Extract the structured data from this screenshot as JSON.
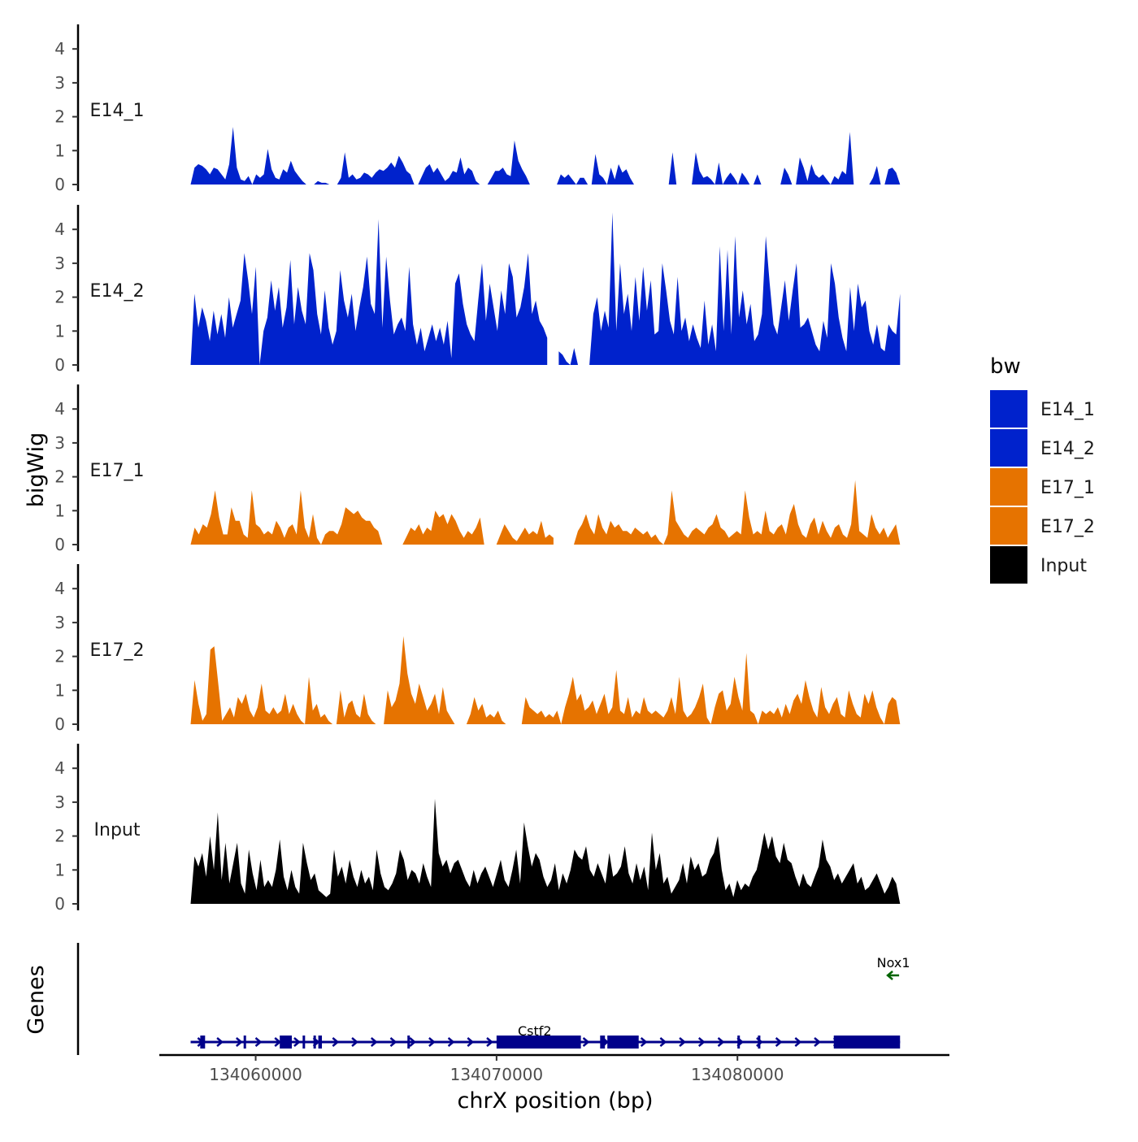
{
  "chart_data": {
    "type": "area",
    "title": "",
    "ylabel": "bigWig",
    "xlabel": "chrX position (bp)",
    "gene_track_label": "Genes",
    "chrom": "chrX",
    "xlim": [
      134056000,
      134088800
    ],
    "ylim": [
      0,
      4.5
    ],
    "y_ticks": [
      "0",
      "1",
      "2",
      "3",
      "4"
    ],
    "y_tick_values": [
      0,
      1,
      2,
      3,
      4
    ],
    "x_ticks": [
      {
        "value": 134060000,
        "label": "134060000"
      },
      {
        "value": 134070000,
        "label": "134070000"
      },
      {
        "value": 134080000,
        "label": "134080000"
      }
    ],
    "data_range": [
      134057300,
      134086750
    ],
    "tracks": [
      {
        "name": "E14_1",
        "color": "#0022cc",
        "values": [
          0,
          0.5,
          0.6,
          0.55,
          0.45,
          0.3,
          0.5,
          0.45,
          0.3,
          0.15,
          0.6,
          1.7,
          0.5,
          0.15,
          0.1,
          0.25,
          0,
          0.3,
          0.2,
          0.3,
          1.05,
          0.45,
          0.2,
          0.15,
          0.45,
          0.35,
          0.7,
          0.4,
          0.25,
          0.1,
          0,
          0,
          0,
          0.1,
          0.05,
          0.05,
          0,
          0,
          0,
          0.2,
          0.95,
          0.2,
          0.3,
          0.15,
          0.2,
          0.35,
          0.3,
          0.2,
          0.35,
          0.45,
          0.4,
          0.5,
          0.65,
          0.5,
          0.85,
          0.65,
          0.4,
          0.3,
          0,
          0,
          0.25,
          0.5,
          0.6,
          0.35,
          0.5,
          0.3,
          0.1,
          0.2,
          0.4,
          0.35,
          0.8,
          0.3,
          0.5,
          0.4,
          0.1,
          0,
          0,
          0,
          0.2,
          0.4,
          0.4,
          0.5,
          0.3,
          0.25,
          1.3,
          0.7,
          0.45,
          0.25,
          0,
          0,
          0,
          0,
          0,
          0.25,
          0,
          0,
          0.3,
          0.2,
          0.3,
          0.15,
          0,
          0.2,
          0.2,
          0,
          0,
          0.9,
          0.3,
          0.2,
          0,
          0.5,
          0.15,
          0.6,
          0.35,
          0.45,
          0.2,
          0,
          0,
          0,
          0,
          0,
          0,
          0,
          0,
          0,
          0,
          0.95,
          0,
          0,
          0,
          0,
          0,
          0.95,
          0.4,
          0.2,
          0.25,
          0.15,
          0,
          0.65,
          0,
          0.2,
          0.35,
          0.2,
          0,
          0.35,
          0.2,
          0,
          0,
          0.3,
          0,
          0,
          0,
          0,
          0,
          0,
          0.5,
          0.3,
          0,
          0,
          0.8,
          0.5,
          0.1,
          0.6,
          0.3,
          0.2,
          0.3,
          0.15,
          0,
          0.25,
          0.15,
          0.4,
          0.3,
          1.55,
          0,
          0,
          0,
          0,
          0,
          0.2,
          0.55,
          0,
          0,
          0.45,
          0.5,
          0.35,
          0
        ],
        "gaps": [
          [
            134072100,
            134072500
          ]
        ]
      },
      {
        "name": "E14_2",
        "color": "#0022cc",
        "values": [
          0,
          2.1,
          1.1,
          1.7,
          1.3,
          0.7,
          1.6,
          0.9,
          1.5,
          0.8,
          2.0,
          1.1,
          1.5,
          1.9,
          3.3,
          2.5,
          1.5,
          2.9,
          0,
          1.0,
          1.4,
          2.5,
          1.6,
          2.3,
          1.1,
          1.7,
          3.1,
          1.2,
          2.3,
          1.6,
          1.2,
          3.3,
          2.8,
          1.5,
          0.9,
          2.2,
          1.1,
          0.6,
          1.0,
          2.8,
          1.9,
          1.4,
          2.1,
          1.0,
          1.7,
          2.3,
          3.2,
          1.8,
          1.5,
          4.3,
          1.1,
          3.2,
          1.9,
          0.9,
          1.2,
          1.4,
          1.0,
          2.9,
          1.2,
          0.6,
          1.1,
          0.4,
          0.8,
          1.2,
          0.7,
          1.1,
          0.6,
          1.3,
          0.2,
          2.4,
          2.7,
          1.8,
          1.2,
          0.9,
          0.7,
          1.9,
          3.0,
          1.3,
          2.4,
          1.7,
          1.0,
          2.2,
          1.5,
          3.0,
          2.6,
          1.4,
          1.7,
          2.3,
          3.3,
          1.5,
          1.9,
          1.3,
          1.1,
          0.8,
          0.6,
          0.5,
          0.4,
          0.3,
          0.1,
          0,
          0.5,
          0,
          0,
          0,
          0,
          1.5,
          2.0,
          1.0,
          1.6,
          1.1,
          4.5,
          1.0,
          3.0,
          1.5,
          2.1,
          1.0,
          2.6,
          1.3,
          2.9,
          1.6,
          2.5,
          0.9,
          1.0,
          3.0,
          2.2,
          1.3,
          0.9,
          2.6,
          1.0,
          1.4,
          0.7,
          1.2,
          0.8,
          0.5,
          1.9,
          0.6,
          1.2,
          0.4,
          3.5,
          1.0,
          3.4,
          0.9,
          3.8,
          1.4,
          2.2,
          1.2,
          1.8,
          0.7,
          0.9,
          1.5,
          3.8,
          2.4,
          1.2,
          0.9,
          1.7,
          2.5,
          1.3,
          2.2,
          3.0,
          1.1,
          1.2,
          1.4,
          1.0,
          0.6,
          0.4,
          1.3,
          0.8,
          3.0,
          2.4,
          1.4,
          0.8,
          0.4,
          2.3,
          1.0,
          2.4,
          1.7,
          1.9,
          1.0,
          0.6,
          1.2,
          0.5,
          0.4,
          1.2,
          1.0,
          0.9,
          2.1
        ],
        "gaps": [
          [
            134072200,
            134072450
          ]
        ]
      },
      {
        "name": "E17_1",
        "color": "#e67300",
        "values": [
          0,
          0.5,
          0.3,
          0.6,
          0.5,
          0.9,
          1.6,
          0.8,
          0.3,
          0.3,
          1.1,
          0.7,
          0.7,
          0.3,
          0.2,
          1.6,
          0.6,
          0.5,
          0.3,
          0.4,
          0.3,
          0.7,
          0.5,
          0.2,
          0.5,
          0.6,
          0.3,
          1.6,
          0.5,
          0.2,
          0.9,
          0.2,
          0,
          0.3,
          0.4,
          0.4,
          0.3,
          0.6,
          1.1,
          1.0,
          0.9,
          1.0,
          0.8,
          0.7,
          0.7,
          0.5,
          0.4,
          0,
          0,
          0,
          0,
          0,
          0,
          0.25,
          0.5,
          0.4,
          0.6,
          0.3,
          0.5,
          0.4,
          1.0,
          0.8,
          0.9,
          0.6,
          0.9,
          0.7,
          0.4,
          0.2,
          0.4,
          0.3,
          0.5,
          0.8,
          0,
          0,
          0,
          0,
          0.3,
          0.6,
          0.4,
          0.2,
          0.1,
          0.3,
          0.5,
          0.3,
          0.4,
          0.3,
          0.7,
          0.2,
          0.3,
          0.2,
          0.1,
          0,
          0,
          0,
          0,
          0.4,
          0.6,
          0.9,
          0.5,
          0.3,
          0.9,
          0.5,
          0.3,
          0.7,
          0.5,
          0.6,
          0.4,
          0.4,
          0.3,
          0.5,
          0.4,
          0.3,
          0.4,
          0.2,
          0.3,
          0.1,
          0,
          0.3,
          1.6,
          0.7,
          0.5,
          0.3,
          0.2,
          0.4,
          0.5,
          0.4,
          0.3,
          0.5,
          0.6,
          0.9,
          0.5,
          0.4,
          0.2,
          0.3,
          0.4,
          0.3,
          1.6,
          0.8,
          0.3,
          0.4,
          0.3,
          1.0,
          0.4,
          0.3,
          0.5,
          0.6,
          0.3,
          0.9,
          1.2,
          0.6,
          0.3,
          0.2,
          0.6,
          0.8,
          0.3,
          0.7,
          0.4,
          0.2,
          0.5,
          0.6,
          0.3,
          0.2,
          0.6,
          1.9,
          0.4,
          0.3,
          0.2,
          0.9,
          0.5,
          0.3,
          0.5,
          0.2,
          0.4,
          0.6,
          0
        ],
        "gaps": [
          [
            134072400,
            134072600
          ]
        ]
      },
      {
        "name": "E17_2",
        "color": "#e67300",
        "values": [
          0,
          1.3,
          0.6,
          0.1,
          0.3,
          2.2,
          2.3,
          1.2,
          0.1,
          0.3,
          0.5,
          0.2,
          0.8,
          0.6,
          0.9,
          0.4,
          0.2,
          0.5,
          1.2,
          0.4,
          0.3,
          0.5,
          0.3,
          0.4,
          0.9,
          0.3,
          0.6,
          0.3,
          0.1,
          0,
          1.4,
          0.4,
          0.6,
          0.2,
          0.3,
          0.1,
          0,
          0,
          1.0,
          0.2,
          0.6,
          0.7,
          0.3,
          0.2,
          0.9,
          0.3,
          0.1,
          0,
          0,
          0,
          1.0,
          0.5,
          0.7,
          1.2,
          2.6,
          1.5,
          0.9,
          0.6,
          1.2,
          0.8,
          0.4,
          0.6,
          0.9,
          0.3,
          1.1,
          0.4,
          0.2,
          0,
          0,
          0,
          0,
          0.3,
          0.8,
          0.4,
          0.6,
          0.2,
          0.3,
          0.2,
          0.4,
          0.1,
          0,
          0,
          0,
          0,
          0,
          0.8,
          0.5,
          0.4,
          0.3,
          0.4,
          0.2,
          0.3,
          0.2,
          0.4,
          0,
          0.5,
          0.9,
          1.4,
          0.7,
          0.9,
          0.4,
          0.5,
          0.7,
          0.3,
          0.6,
          0.9,
          0.3,
          0.5,
          1.6,
          0.4,
          0.3,
          0.8,
          0.2,
          0.4,
          0.3,
          0.8,
          0.4,
          0.3,
          0.4,
          0.3,
          0.2,
          0.4,
          0.8,
          0.3,
          1.4,
          0.4,
          0.2,
          0.3,
          0.5,
          0.8,
          1.2,
          0.2,
          0,
          0.5,
          0.9,
          1.0,
          0.4,
          0.6,
          1.4,
          0.8,
          0.4,
          2.1,
          0.4,
          0.3,
          0,
          0.4,
          0.3,
          0.4,
          0.3,
          0.5,
          0.2,
          0.6,
          0.3,
          0.7,
          0.9,
          0.6,
          1.3,
          0.8,
          0.4,
          0.2,
          1.1,
          0.5,
          0.3,
          0.6,
          0.8,
          0.3,
          0.2,
          1.0,
          0.6,
          0.3,
          0.2,
          0.9,
          0.6,
          1.0,
          0.5,
          0.2,
          0,
          0.6,
          0.8,
          0.7,
          0
        ],
        "gaps": []
      },
      {
        "name": "Input",
        "color": "#000000",
        "values": [
          0,
          1.4,
          1.1,
          1.5,
          0.8,
          2.0,
          1.0,
          2.7,
          0.7,
          1.8,
          0.6,
          1.2,
          1.8,
          0.6,
          0.3,
          1.6,
          0.9,
          0.4,
          1.3,
          0.5,
          0.7,
          0.5,
          1.0,
          1.9,
          0.8,
          0.4,
          1.0,
          0.5,
          0.3,
          1.8,
          1.2,
          0.7,
          0.9,
          0.4,
          0.3,
          0.2,
          0.3,
          1.6,
          0.8,
          1.1,
          0.6,
          1.3,
          0.8,
          0.5,
          1.0,
          0.6,
          0.8,
          0.4,
          1.6,
          0.9,
          0.5,
          0.4,
          0.6,
          0.9,
          1.6,
          1.3,
          0.7,
          1.0,
          0.9,
          0.6,
          1.2,
          0.8,
          0.5,
          3.1,
          1.5,
          1.1,
          1.3,
          0.9,
          1.2,
          1.3,
          1.0,
          0.7,
          0.5,
          1.0,
          0.6,
          0.9,
          1.1,
          0.8,
          0.5,
          0.9,
          1.3,
          0.7,
          0.5,
          1.0,
          1.6,
          0.6,
          2.4,
          1.7,
          1.1,
          1.5,
          1.3,
          0.8,
          0.5,
          0.7,
          1.2,
          0.4,
          0.9,
          0.6,
          1.0,
          1.6,
          1.4,
          1.3,
          1.7,
          1.0,
          0.8,
          1.2,
          0.9,
          0.6,
          1.5,
          0.8,
          0.9,
          1.1,
          1.7,
          0.9,
          0.6,
          1.2,
          0.7,
          1.1,
          0.4,
          2.1,
          1.0,
          1.5,
          0.6,
          0.8,
          0.3,
          0.5,
          0.7,
          1.2,
          0.6,
          1.4,
          1.0,
          1.2,
          0.8,
          0.9,
          1.3,
          1.5,
          2.0,
          1.0,
          0.4,
          0.6,
          0.2,
          0.7,
          0.4,
          0.6,
          0.5,
          0.8,
          1.0,
          1.5,
          2.1,
          1.6,
          2.0,
          1.4,
          1.2,
          1.8,
          1.3,
          1.2,
          0.8,
          0.5,
          0.9,
          0.6,
          0.5,
          0.8,
          1.1,
          1.9,
          1.3,
          1.1,
          0.7,
          0.9,
          0.6,
          0.8,
          1.0,
          1.2,
          0.6,
          0.8,
          0.4,
          0.5,
          0.7,
          0.9,
          0.6,
          0.3,
          0.5,
          0.8,
          0.6,
          0
        ],
        "gaps": []
      }
    ],
    "legend": {
      "title": "bw",
      "position": "right",
      "items": [
        {
          "label": "E14_1",
          "color": "#0022cc"
        },
        {
          "label": "E14_2",
          "color": "#0022cc"
        },
        {
          "label": "E17_1",
          "color": "#e67300"
        },
        {
          "label": "E17_2",
          "color": "#e67300"
        },
        {
          "label": "Input",
          "color": "#000000"
        }
      ]
    },
    "genes": [
      {
        "name": "Cstf2",
        "strand": "+",
        "start": 134057300,
        "end": 134086750,
        "color": "#00008b",
        "exons": [
          [
            134057700,
            134057900
          ],
          [
            134059500,
            134059600
          ],
          [
            134061000,
            134061500
          ],
          [
            134061950,
            134062050
          ],
          [
            134062400,
            134062500
          ],
          [
            134062600,
            134062750
          ],
          [
            134066300,
            134066400
          ],
          [
            134070000,
            134073500
          ],
          [
            134074300,
            134074500
          ],
          [
            134074600,
            134075900
          ],
          [
            134080000,
            134080100
          ],
          [
            134080850,
            134080950
          ],
          [
            134084000,
            134086750
          ]
        ]
      },
      {
        "name": "Nox1",
        "strand": "-",
        "start": 134086200,
        "end": 134086750,
        "color": "#006400",
        "exons": []
      }
    ]
  }
}
